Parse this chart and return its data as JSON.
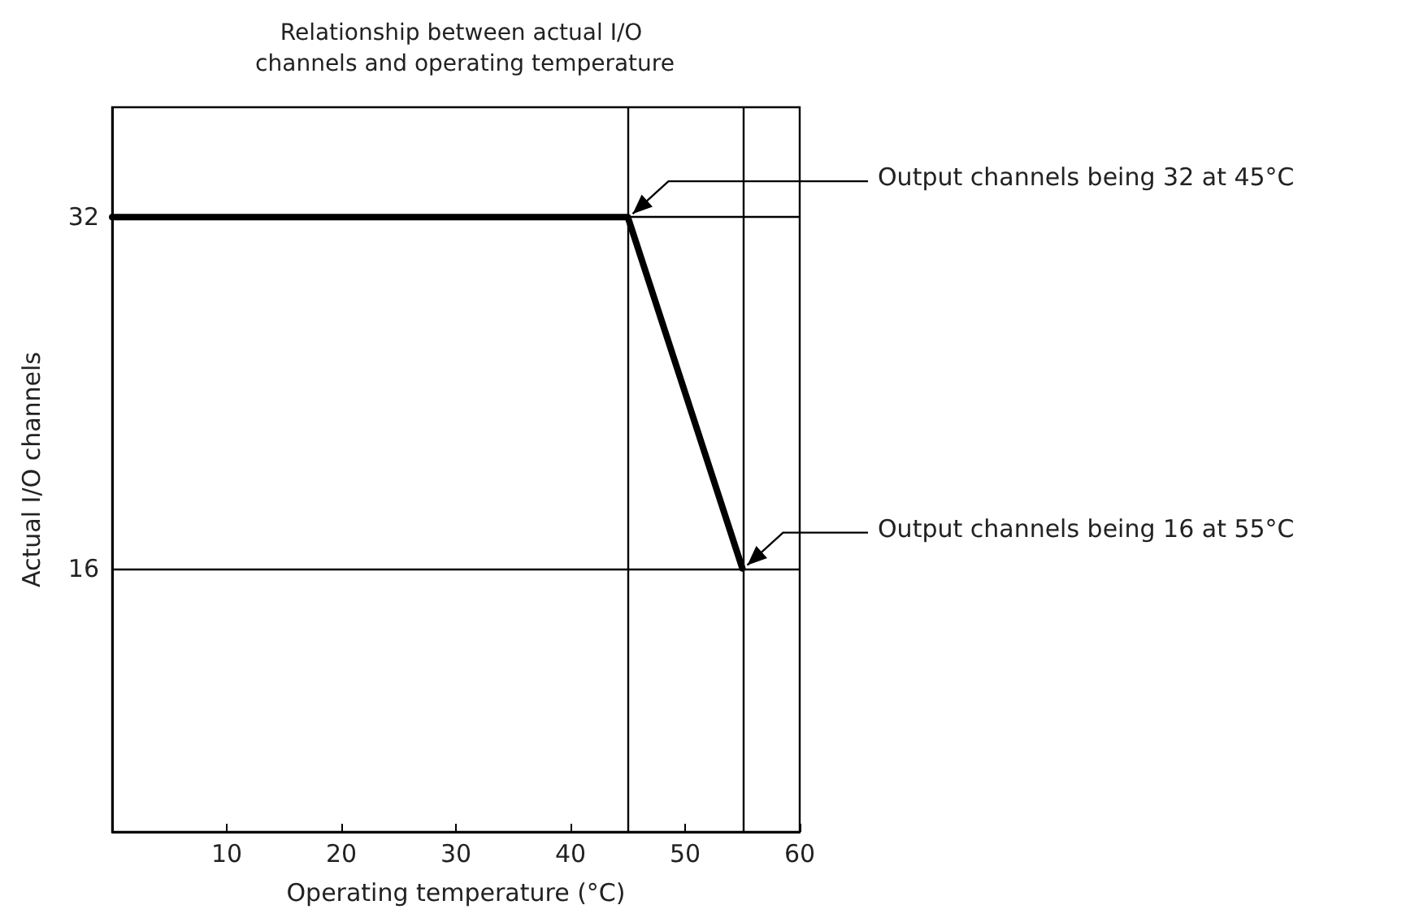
{
  "chart_data": {
    "type": "line",
    "title": "Relationship between actual I/O channels and operating temperature",
    "xlabel": "Operating temperature (°C)",
    "ylabel": "Actual I/O channels",
    "x": [
      0,
      45,
      55
    ],
    "series": [
      {
        "color": "#000000",
        "values": [
          32,
          32,
          16
        ]
      }
    ],
    "xlim": [
      0,
      60
    ],
    "xticks": [
      10,
      20,
      30,
      40,
      50,
      60
    ],
    "ylim": [
      4,
      37
    ],
    "yticks": [
      16,
      32
    ],
    "ref_lines": [
      {
        "axis": "x",
        "value": 45,
        "color": "#000000"
      },
      {
        "axis": "x",
        "value": 55,
        "color": "#000000"
      },
      {
        "axis": "y",
        "value": 16,
        "color": "#000000"
      },
      {
        "axis": "y",
        "value": 32,
        "color": "#000000"
      }
    ],
    "annotations": [
      {
        "text": "Output channels being 32 at 45°C",
        "x": 45,
        "y": 32
      },
      {
        "text": "Output channels being 16 at 55°C",
        "x": 55,
        "y": 16
      }
    ],
    "marker": "none",
    "line_style": "solid"
  }
}
